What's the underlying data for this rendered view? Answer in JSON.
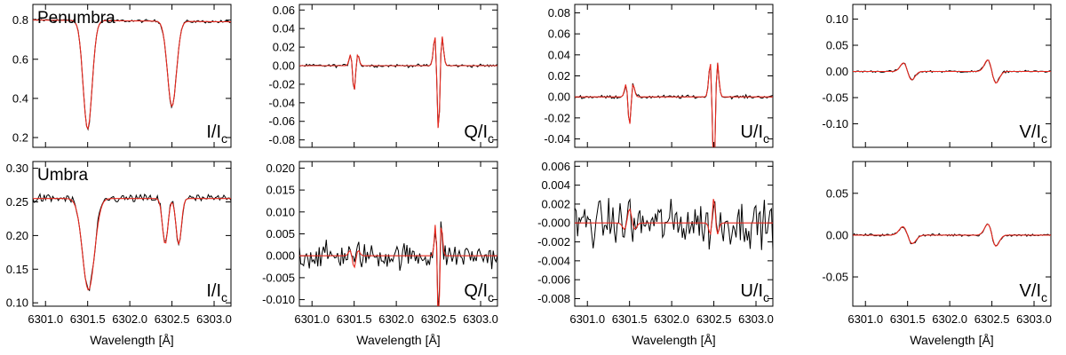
{
  "chart_data": [
    {
      "type": "line",
      "row": "Penumbra",
      "quantity": "I",
      "region_label": "Penumbra",
      "ylabel": "I/I",
      "ylabel_sub": "c",
      "xlim": [
        6300.85,
        6303.2
      ],
      "ylim": [
        0.15,
        0.88
      ],
      "yticks": [
        0.2,
        0.4,
        0.6,
        0.8
      ],
      "yticklabels": [
        "0.2",
        "0.4",
        "0.6",
        "0.8"
      ],
      "continuum": 0.8,
      "slope": -0.004,
      "lines": [
        {
          "x0": 6301.5,
          "a": 0.555,
          "w": 0.075
        },
        {
          "x0": 6302.5,
          "a": 0.435,
          "w": 0.075
        }
      ],
      "noise": 0.007
    },
    {
      "type": "line",
      "row": "Penumbra",
      "quantity": "Q",
      "region_label": "",
      "ylabel": "Q/I",
      "ylabel_sub": "c",
      "xlim": [
        6300.85,
        6303.2
      ],
      "ylim": [
        -0.088,
        0.066
      ],
      "yticks": [
        -0.08,
        -0.06,
        -0.04,
        -0.02,
        0.0,
        0.02,
        0.04,
        0.06
      ],
      "yticklabels": [
        "-0.08",
        "-0.06",
        "-0.04",
        "-0.02",
        "0.00",
        "0.02",
        "0.04",
        "0.06"
      ],
      "features": [
        {
          "x0": 6301.5,
          "a": -0.045,
          "w": 0.035,
          "kind": "lin"
        },
        {
          "x0": 6302.5,
          "a": -0.119,
          "w": 0.035,
          "kind": "lin"
        }
      ],
      "noise": 0.0015
    },
    {
      "type": "line",
      "row": "Penumbra",
      "quantity": "U",
      "region_label": "",
      "ylabel": "U/I",
      "ylabel_sub": "c",
      "xlim": [
        6300.85,
        6303.2
      ],
      "ylim": [
        -0.048,
        0.088
      ],
      "yticks": [
        -0.04,
        -0.02,
        0.0,
        0.02,
        0.04,
        0.06,
        0.08
      ],
      "yticklabels": [
        "-0.04",
        "-0.02",
        "0.00",
        "0.02",
        "0.04",
        "0.06",
        "0.08"
      ],
      "features": [
        {
          "x0": 6301.5,
          "a": -0.045,
          "w": 0.035,
          "kind": "lin"
        },
        {
          "x0": 6302.5,
          "a": -0.123,
          "w": 0.035,
          "kind": "lin"
        }
      ],
      "noise": 0.0015
    },
    {
      "type": "line",
      "row": "Penumbra",
      "quantity": "V",
      "region_label": "",
      "ylabel": "V/I",
      "ylabel_sub": "c",
      "xlim": [
        6300.85,
        6303.2
      ],
      "ylim": [
        -0.145,
        0.128
      ],
      "yticks": [
        -0.1,
        -0.05,
        0.0,
        0.05,
        0.1
      ],
      "yticklabels": [
        "-0.10",
        "-0.05",
        "0.00",
        "0.05",
        "0.10"
      ],
      "features": [
        {
          "x0": 6301.5,
          "a": 0.0132,
          "w": 0.07,
          "kind": "circ"
        },
        {
          "x0": 6302.5,
          "a": 0.0181,
          "w": 0.07,
          "kind": "circ"
        }
      ],
      "noise": 0.002
    },
    {
      "type": "line",
      "row": "Umbra",
      "quantity": "I",
      "region_label": "Umbra",
      "ylabel": "I/I",
      "ylabel_sub": "c",
      "xlim": [
        6300.85,
        6303.2
      ],
      "ylim": [
        0.095,
        0.31
      ],
      "yticks": [
        0.1,
        0.15,
        0.2,
        0.25,
        0.3
      ],
      "yticklabels": [
        "0.10",
        "0.15",
        "0.20",
        "0.25",
        "0.30"
      ],
      "continuum": 0.255,
      "slope": 0.0,
      "lines": [
        {
          "x0": 6301.51,
          "a": 0.136,
          "w": 0.1
        },
        {
          "x0": 6302.42,
          "a": 0.068,
          "w": 0.045
        },
        {
          "x0": 6302.58,
          "a": 0.068,
          "w": 0.045
        }
      ],
      "noise": 0.006
    },
    {
      "type": "line",
      "row": "Umbra",
      "quantity": "Q",
      "region_label": "",
      "ylabel": "Q/I",
      "ylabel_sub": "c",
      "xlim": [
        6300.85,
        6303.2
      ],
      "ylim": [
        -0.0115,
        0.0215
      ],
      "yticks": [
        -0.01,
        -0.005,
        0.0,
        0.005,
        0.01,
        0.015,
        0.02
      ],
      "yticklabels": [
        "-0.010",
        "-0.005",
        "0.000",
        "0.005",
        "0.010",
        "0.015",
        "0.020"
      ],
      "features": [
        {
          "x0": 6301.5,
          "a": -0.0045,
          "w": 0.04,
          "kind": "lin"
        },
        {
          "x0": 6302.5,
          "a": -0.028,
          "w": 0.028,
          "kind": "lin"
        }
      ],
      "noise": 0.0028
    },
    {
      "type": "line",
      "row": "Umbra",
      "quantity": "U",
      "region_label": "",
      "ylabel": "U/I",
      "ylabel_sub": "c",
      "xlim": [
        6300.85,
        6303.2
      ],
      "ylim": [
        -0.0088,
        0.0065
      ],
      "yticks": [
        -0.008,
        -0.006,
        -0.004,
        -0.002,
        0.0,
        0.002,
        0.004,
        0.006
      ],
      "yticklabels": [
        "-0.008",
        "-0.006",
        "-0.004",
        "-0.002",
        "-0.000",
        "0.002",
        "0.004",
        "0.006"
      ],
      "features": [
        {
          "x0": 6301.5,
          "a": 0.0025,
          "w": 0.05,
          "kind": "lin"
        },
        {
          "x0": 6302.5,
          "a": 0.0045,
          "w": 0.035,
          "kind": "lin"
        }
      ],
      "noise": 0.0022
    },
    {
      "type": "line",
      "row": "Umbra",
      "quantity": "V",
      "region_label": "",
      "ylabel": "V/I",
      "ylabel_sub": "c",
      "xlim": [
        6300.85,
        6303.2
      ],
      "ylim": [
        -0.085,
        0.088
      ],
      "yticks": [
        -0.05,
        0.0,
        0.05
      ],
      "yticklabels": [
        "-0.05",
        "0.00",
        "0.05"
      ],
      "features": [
        {
          "x0": 6301.5,
          "a": 0.0095,
          "w": 0.08,
          "kind": "circ"
        },
        {
          "x0": 6302.5,
          "a": 0.0108,
          "w": 0.07,
          "kind": "circ"
        }
      ],
      "noise": 0.0015
    }
  ],
  "x_axis": {
    "xticks": [
      6301.0,
      6301.5,
      6302.0,
      6302.5,
      6303.0
    ],
    "xticklabels": [
      "6301.0",
      "6301.5",
      "6302.0",
      "6302.5",
      "6303.0"
    ],
    "xlabel": "Wavelength [Å]"
  },
  "colors": {
    "observed": "#000000",
    "fit": "#e8281e"
  }
}
